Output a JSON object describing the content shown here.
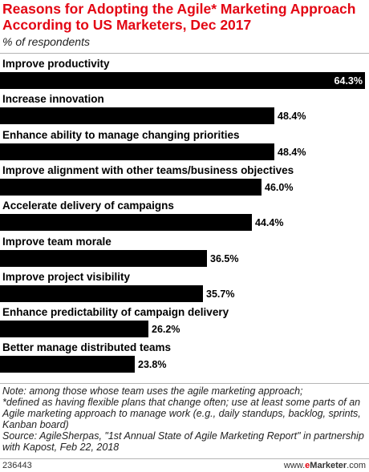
{
  "chart_data": {
    "type": "bar",
    "orientation": "horizontal",
    "title": "Reasons for Adopting the Agile* Marketing Approach According to US Marketers, Dec 2017",
    "subtitle": "% of respondents",
    "categories": [
      "Improve productivity",
      "Increase innovation",
      "Enhance ability to manage changing priorities",
      "Improve alignment with other teams/business objectives",
      "Accelerate delivery of campaigns",
      "Improve team morale",
      "Improve project visibility",
      "Enhance predictability of campaign delivery",
      "Better manage distributed teams"
    ],
    "values": [
      64.3,
      48.4,
      48.4,
      46.0,
      44.4,
      36.5,
      35.7,
      26.2,
      23.8
    ],
    "value_labels": [
      "64.3%",
      "48.4%",
      "48.4%",
      "46.0%",
      "44.4%",
      "36.5%",
      "35.7%",
      "26.2%",
      "23.8%"
    ],
    "xlim": [
      0,
      64.3
    ],
    "bar_color": "#000000",
    "grid": false,
    "legend": "none"
  },
  "notes": [
    "Note: among those whose team uses the agile marketing approach;",
    "*defined as having flexible plans that change often; use at least some parts of an Agile marketing approach to manage work (e.g., daily standups, backlog, sprints, Kanban board)",
    "Source: AgileSherpas, \"1st Annual State of Agile Marketing Report\" in partnership with Kapost, Feb 22, 2018"
  ],
  "footer": {
    "chart_id": "236443",
    "brand_prefix": "www.",
    "brand_accent": "e",
    "brand_name": "Marketer",
    "brand_suffix": ".com"
  },
  "colors": {
    "title": "#e30613",
    "bar": "#000000",
    "brand_accent": "#e30613"
  }
}
